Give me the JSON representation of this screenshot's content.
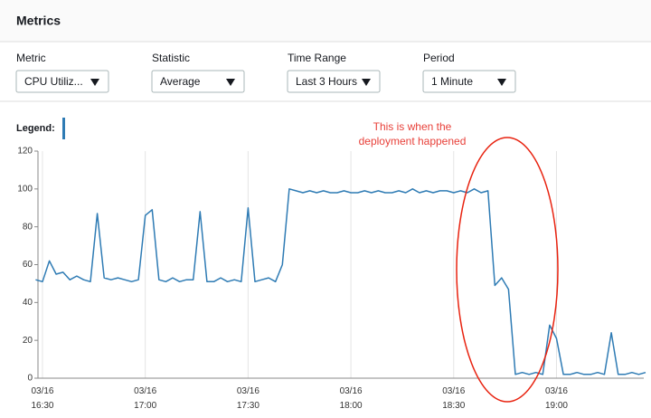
{
  "header": {
    "title": "Metrics"
  },
  "controls": [
    {
      "label": "Metric",
      "value": "CPU Utiliz..."
    },
    {
      "label": "Statistic",
      "value": "Average"
    },
    {
      "label": "Time Range",
      "value": "Last 3 Hours"
    },
    {
      "label": "Period",
      "value": "1 Minute"
    }
  ],
  "legend": {
    "label": "Legend:"
  },
  "annotation": [
    "This is when the",
    "deployment happened"
  ],
  "chart_data": {
    "type": "line",
    "x": [
      "03/16 16:28",
      "03/16 16:30",
      "03/16 16:32",
      "03/16 16:34",
      "03/16 16:36",
      "03/16 16:38",
      "03/16 16:40",
      "03/16 16:42",
      "03/16 16:44",
      "03/16 16:46",
      "03/16 16:48",
      "03/16 16:50",
      "03/16 16:52",
      "03/16 16:54",
      "03/16 16:56",
      "03/16 16:58",
      "03/16 17:00",
      "03/16 17:02",
      "03/16 17:04",
      "03/16 17:06",
      "03/16 17:08",
      "03/16 17:10",
      "03/16 17:12",
      "03/16 17:14",
      "03/16 17:16",
      "03/16 17:18",
      "03/16 17:20",
      "03/16 17:22",
      "03/16 17:24",
      "03/16 17:26",
      "03/16 17:28",
      "03/16 17:30",
      "03/16 17:32",
      "03/16 17:34",
      "03/16 17:36",
      "03/16 17:38",
      "03/16 17:40",
      "03/16 17:42",
      "03/16 17:44",
      "03/16 17:46",
      "03/16 17:48",
      "03/16 17:50",
      "03/16 17:52",
      "03/16 17:54",
      "03/16 17:56",
      "03/16 17:58",
      "03/16 18:00",
      "03/16 18:02",
      "03/16 18:04",
      "03/16 18:06",
      "03/16 18:08",
      "03/16 18:10",
      "03/16 18:12",
      "03/16 18:14",
      "03/16 18:16",
      "03/16 18:18",
      "03/16 18:20",
      "03/16 18:22",
      "03/16 18:24",
      "03/16 18:26",
      "03/16 18:28",
      "03/16 18:30",
      "03/16 18:32",
      "03/16 18:34",
      "03/16 18:36",
      "03/16 18:38",
      "03/16 18:40",
      "03/16 18:42",
      "03/16 18:44",
      "03/16 18:46",
      "03/16 18:48",
      "03/16 18:50",
      "03/16 18:52",
      "03/16 18:54",
      "03/16 18:56",
      "03/16 18:58",
      "03/16 19:00",
      "03/16 19:02",
      "03/16 19:04",
      "03/16 19:06",
      "03/16 19:08",
      "03/16 19:10",
      "03/16 19:12",
      "03/16 19:14",
      "03/16 19:16",
      "03/16 19:18",
      "03/16 19:20",
      "03/16 19:22",
      "03/16 19:24",
      "03/16 19:26"
    ],
    "series": [
      {
        "color": "#2e7bb4",
        "values": [
          52,
          51,
          62,
          55,
          56,
          52,
          54,
          52,
          51,
          87,
          53,
          52,
          53,
          52,
          51,
          52,
          86,
          89,
          52,
          51,
          53,
          51,
          52,
          52,
          88,
          51,
          51,
          53,
          51,
          52,
          51,
          90,
          51,
          52,
          53,
          51,
          60,
          100,
          99,
          98,
          99,
          98,
          99,
          98,
          98,
          99,
          98,
          98,
          99,
          98,
          99,
          98,
          98,
          99,
          98,
          100,
          98,
          99,
          98,
          99,
          99,
          98,
          99,
          98,
          100,
          98,
          99,
          49,
          53,
          47,
          2,
          3,
          2,
          3,
          2,
          28,
          21,
          2,
          2,
          3,
          2,
          2,
          3,
          2,
          24,
          2,
          2,
          3,
          2,
          3
        ]
      }
    ],
    "ylim": [
      0,
      120
    ],
    "yticks": [
      0,
      20,
      40,
      60,
      80,
      100,
      120
    ],
    "xticks": [
      "03/16 16:30",
      "03/16 17:00",
      "03/16 17:30",
      "03/16 18:00",
      "03/16 18:30",
      "03/16 19:00"
    ],
    "grid": true
  }
}
